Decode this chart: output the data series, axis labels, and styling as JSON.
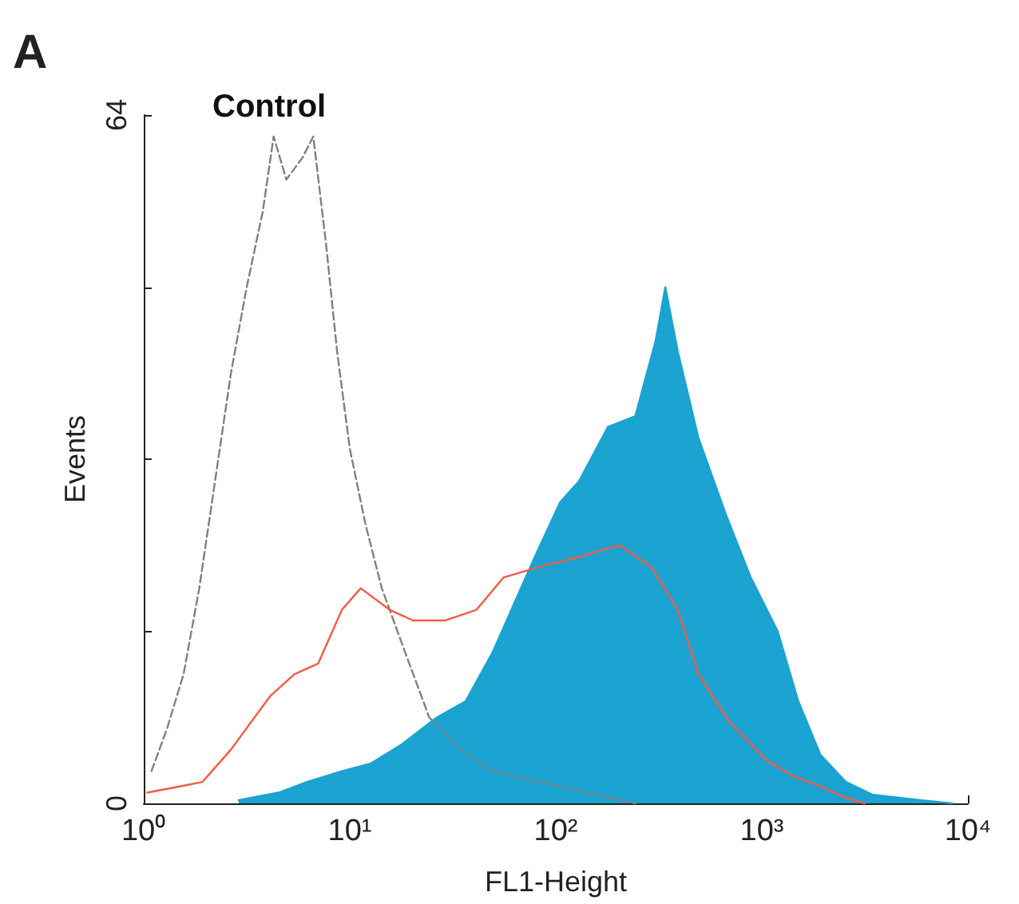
{
  "chart_data": {
    "type": "line",
    "title": "Control",
    "xlabel": "FL1-Height",
    "ylabel": "Events",
    "annotations": [
      "A"
    ],
    "log": "x",
    "grid": false,
    "marker": "none",
    "xlim": [
      1,
      10000
    ],
    "xticks": [
      {
        "value": 1,
        "label": "10⁰"
      },
      {
        "value": 10,
        "label": "10¹"
      },
      {
        "value": 100,
        "label": "10²"
      },
      {
        "value": 1000,
        "label": "10³"
      },
      {
        "value": 10000,
        "label": "10⁴"
      }
    ],
    "ylim": [
      0,
      64
    ],
    "yticks": [
      0,
      {
        "value": 16,
        "label": null
      },
      {
        "value": 32,
        "label": null
      },
      {
        "value": 48,
        "label": null
      },
      64
    ],
    "series": [
      {
        "line_style": "dashed",
        "color": "#808080",
        "x": [
          1.09,
          1.3,
          1.56,
          1.86,
          2.22,
          2.65,
          3.16,
          3.78,
          4.27,
          4.92,
          5.88,
          6.65,
          7.67,
          8.68,
          10,
          11.9,
          14.3,
          18.6,
          24.3,
          34.6,
          49.2,
          83.8,
          142,
          243
        ],
        "values": [
          3,
          7,
          12,
          20,
          30,
          40,
          48,
          55,
          62,
          58,
          60,
          62,
          52,
          42,
          33,
          26,
          20,
          14,
          8,
          5,
          3,
          2,
          1,
          0
        ]
      },
      {
        "type": "area",
        "line_style": "solid",
        "color": "#1ba3d2",
        "x": [
          2.89,
          4.51,
          6.2,
          9.16,
          12.6,
          17.9,
          26.5,
          36.5,
          49.2,
          64.2,
          79.4,
          105,
          130,
          179,
          243,
          305,
          340,
          391,
          492,
          665,
          883,
          1194,
          1503,
          1927,
          2557,
          3455,
          5880,
          8380
        ],
        "values": [
          0.3,
          1,
          2,
          3,
          3.7,
          5.5,
          8,
          9.5,
          14,
          19,
          23,
          28,
          30,
          35,
          36,
          43,
          48,
          42,
          34,
          27,
          21,
          16,
          9.5,
          4.5,
          2,
          0.8,
          0.3,
          0
        ]
      },
      {
        "line_style": "solid",
        "color": "#f25c44",
        "x": [
          1.04,
          1.43,
          1.93,
          2.65,
          3.45,
          4.12,
          5.38,
          7.02,
          9.16,
          11.3,
          15.6,
          20.3,
          28.9,
          41.2,
          55.7,
          83.8,
          135,
          203,
          290,
          391,
          492,
          702,
          1055,
          1425,
          1927,
          2557,
          3162
        ],
        "values": [
          1,
          1.5,
          2,
          5,
          8,
          10,
          12,
          13,
          18,
          20,
          18,
          17,
          17,
          18,
          21,
          22,
          23,
          24,
          22,
          18,
          12,
          7.5,
          4,
          2.5,
          1.6,
          0.5,
          0
        ]
      }
    ]
  }
}
